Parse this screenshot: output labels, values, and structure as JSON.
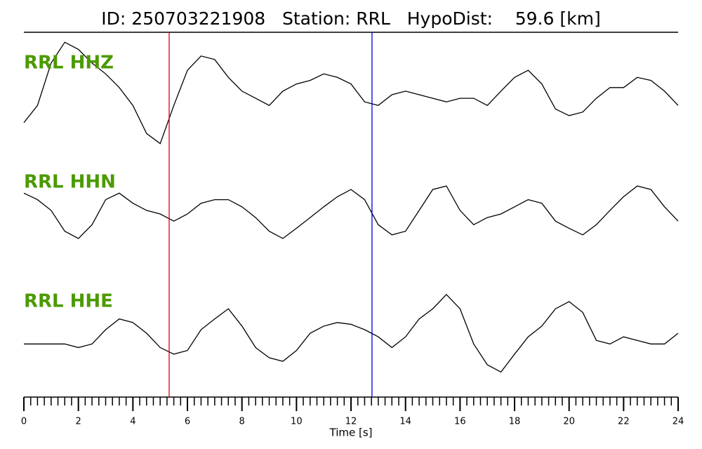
{
  "chart_data": {
    "type": "line",
    "title": "ID: 250703221908   Station: RRL   HypoDist:    59.6 [km]",
    "xlabel": "Time [s]",
    "x": [
      0,
      0.5,
      1,
      1.5,
      2,
      2.5,
      3,
      3.5,
      4,
      4.5,
      5,
      5.5,
      6,
      6.5,
      7,
      7.5,
      8,
      8.5,
      9,
      9.5,
      10,
      10.5,
      11,
      11.5,
      12,
      12.5,
      13,
      13.5,
      14,
      14.5,
      15,
      15.5,
      16,
      16.5,
      17,
      17.5,
      18,
      18.5,
      19,
      19.5,
      20,
      20.5,
      21,
      21.5,
      22,
      22.5,
      23,
      23.5,
      24
    ],
    "xlim": [
      0,
      24
    ],
    "xticks": [
      0,
      2,
      4,
      6,
      8,
      10,
      12,
      14,
      16,
      18,
      20,
      22,
      24
    ],
    "xminorticks": [
      0,
      0.25,
      0.5,
      0.75,
      1,
      1.25,
      1.5,
      1.75,
      2,
      2.25,
      2.5,
      2.75,
      3,
      3.25,
      3.5,
      3.75,
      4,
      4.25,
      4.5,
      4.75,
      5,
      5.25,
      5.5,
      5.75,
      6,
      6.25,
      6.5,
      6.75,
      7,
      7.25,
      7.5,
      7.75,
      8,
      8.25,
      8.5,
      8.75,
      9,
      9.25,
      9.5,
      9.75,
      10,
      10.25,
      10.5,
      10.75,
      11,
      11.25,
      11.5,
      11.75,
      12,
      12.25,
      12.5,
      12.75,
      13,
      13.25,
      13.5,
      13.75,
      14,
      14.25,
      14.5,
      14.75,
      15,
      15.25,
      15.5,
      15.75,
      16,
      16.25,
      16.5,
      16.75,
      17,
      17.25,
      17.5,
      17.75,
      18,
      18.25,
      18.5,
      18.75,
      19,
      19.25,
      19.5,
      19.75,
      20,
      20.25,
      20.5,
      20.75,
      21,
      21.25,
      21.5,
      21.75,
      22,
      22.25,
      22.5,
      22.75,
      23,
      23.25,
      23.5,
      23.75,
      24
    ],
    "ylim": [
      -1,
      1
    ],
    "label_color": "#4c9a00",
    "vlines": [
      {
        "x": 5.33,
        "color": "#e00000"
      },
      {
        "x": 12.77,
        "color": "#0000e0"
      }
    ],
    "series": [
      {
        "name": "RRL HHZ",
        "color": "#000000",
        "values": [
          -0.47,
          -0.18,
          0.53,
          0.88,
          0.76,
          0.53,
          0.35,
          0.12,
          -0.18,
          -0.65,
          -0.82,
          -0.18,
          0.41,
          0.65,
          0.59,
          0.29,
          0.06,
          -0.06,
          -0.18,
          0.06,
          0.18,
          0.24,
          0.35,
          0.29,
          0.18,
          -0.12,
          -0.18,
          0,
          0.06,
          0,
          -0.06,
          -0.12,
          -0.06,
          -0.06,
          -0.18,
          0.06,
          0.29,
          0.41,
          0.18,
          -0.24,
          -0.35,
          -0.29,
          -0.06,
          0.12,
          0.12,
          0.29,
          0.24,
          0.06,
          -0.18
        ]
      },
      {
        "name": "RRL HHN",
        "color": "#000000",
        "values": [
          0.35,
          0.24,
          0.06,
          -0.29,
          -0.41,
          -0.18,
          0.24,
          0.35,
          0.18,
          0.06,
          0,
          -0.12,
          0,
          0.18,
          0.24,
          0.24,
          0.12,
          -0.06,
          -0.29,
          -0.41,
          -0.24,
          -0.06,
          0.12,
          0.29,
          0.41,
          0.24,
          -0.18,
          -0.35,
          -0.29,
          0.06,
          0.41,
          0.47,
          0.06,
          -0.18,
          -0.06,
          0,
          0.12,
          0.24,
          0.18,
          -0.12,
          -0.24,
          -0.35,
          -0.18,
          0.06,
          0.29,
          0.47,
          0.41,
          0.12,
          -0.12
        ]
      },
      {
        "name": "RRL HHE",
        "color": "#000000",
        "values": [
          -0.18,
          -0.18,
          -0.18,
          -0.18,
          -0.24,
          -0.18,
          0.06,
          0.24,
          0.18,
          0,
          -0.24,
          -0.35,
          -0.29,
          0.06,
          0.24,
          0.41,
          0.12,
          -0.24,
          -0.41,
          -0.47,
          -0.29,
          0,
          0.12,
          0.18,
          0.15,
          0.06,
          -0.06,
          -0.24,
          -0.06,
          0.24,
          0.41,
          0.65,
          0.41,
          -0.18,
          -0.53,
          -0.65,
          -0.35,
          -0.06,
          0.12,
          0.41,
          0.53,
          0.35,
          -0.12,
          -0.18,
          -0.06,
          -0.12,
          -0.18,
          -0.18,
          0
        ]
      }
    ]
  }
}
